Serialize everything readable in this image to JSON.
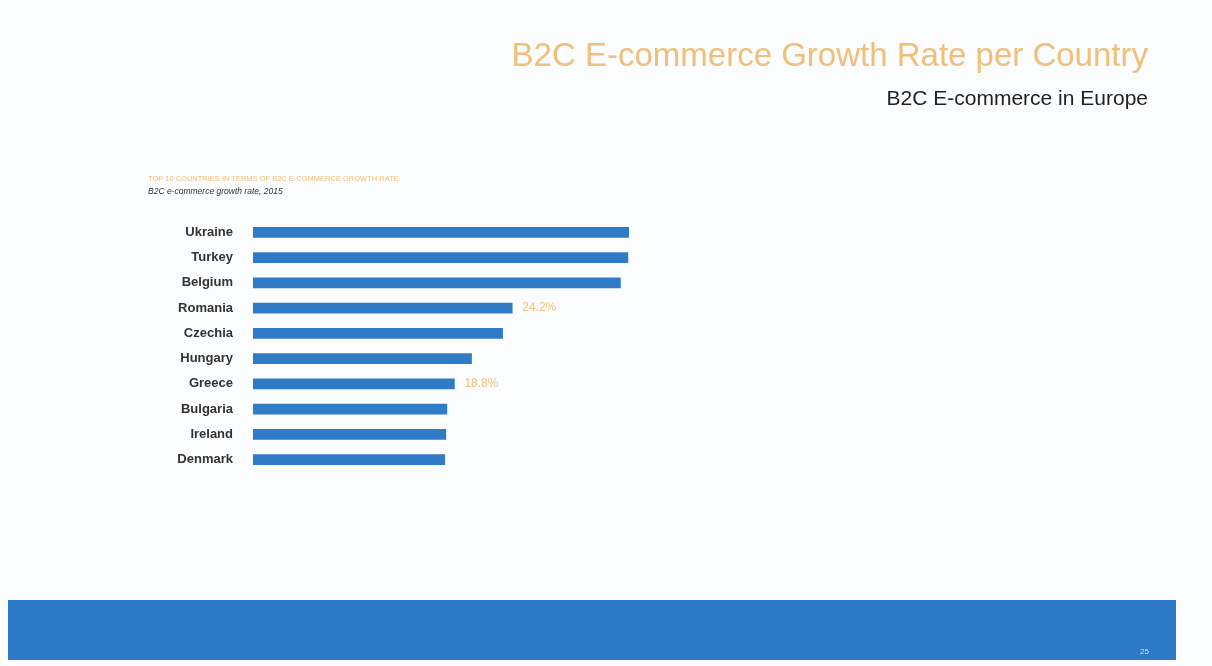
{
  "chart_data": {
    "type": "bar",
    "orientation": "horizontal",
    "title": "B2C E-commerce Growth Rate per Country",
    "subtitle": "B2C E-commerce in Europe",
    "annotations": [
      "TOP 10 COUNTRIES IN TERMS OF B2C E-COMMERCE GROWTH RATE",
      "B2C e-commerce growth rate, 2015",
      "25"
    ],
    "categories": [
      "Ukraine",
      "Turkey",
      "Belgium",
      "Romania",
      "Czechia",
      "Hungary",
      "Greece",
      "Bulgaria",
      "Ireland",
      "Denmark"
    ],
    "values": [
      35.1,
      35.0,
      34.3,
      24.2,
      23.3,
      20.4,
      18.8,
      18.1,
      18.0,
      17.9
    ],
    "value_labels": [
      null,
      null,
      null,
      "24.2%",
      null,
      null,
      "18.8%",
      null,
      null,
      null
    ],
    "color": "#2f7bc6"
  }
}
